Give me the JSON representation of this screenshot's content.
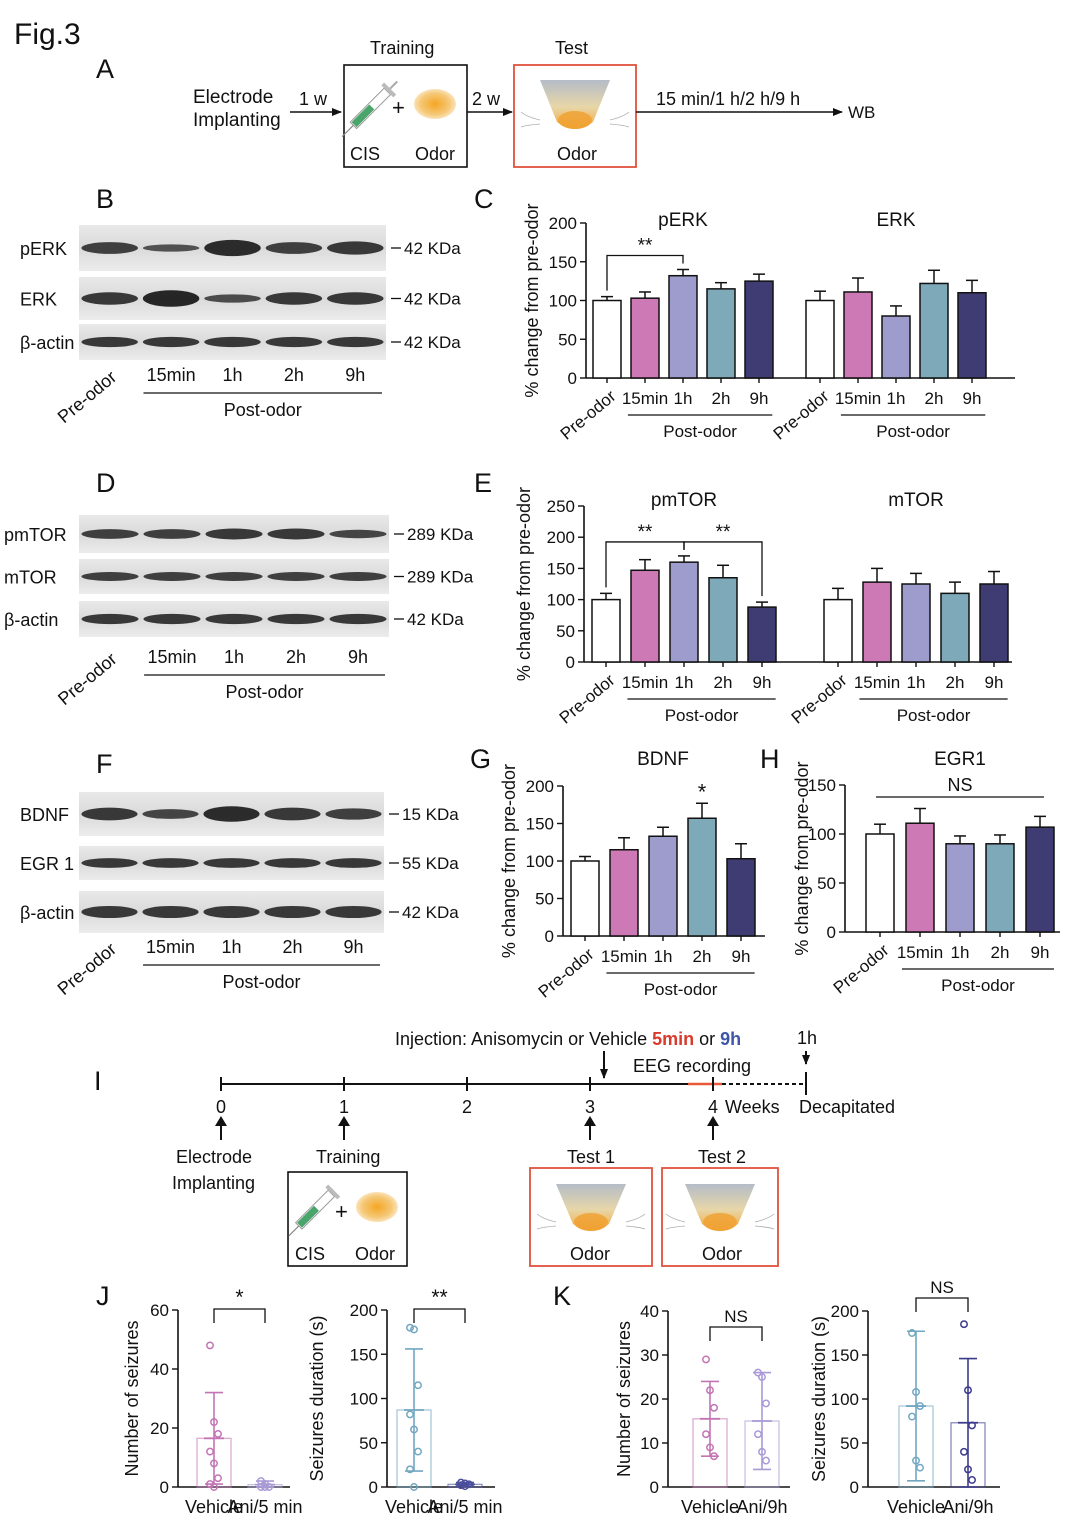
{
  "figure_label": "Fig.3",
  "colors": {
    "white": "#ffffff",
    "pink": "#cc79b5",
    "lilac": "#9e9ccc",
    "teal": "#7ea9b8",
    "blue": "#6cb4d6",
    "navy": "#3e3c72",
    "dark_blue": "#3c3a8c",
    "red_box": "#e1523d",
    "orange_odor": "#f0b54a",
    "syringe": "#4aa56a",
    "timeline_red": "#e85a3a"
  },
  "panelA": {
    "letter": "A",
    "electrode_line1": "Electrode",
    "electrode_line2": "Implanting",
    "arrow1_label": "1 w",
    "training_title": "Training",
    "cis_label": "CIS",
    "plus": "+",
    "odor_label": "Odor",
    "arrow2_label": "2 w",
    "test_title": "Test",
    "test_odor_label": "Odor",
    "arrow3_label": "15 min/1 h/2 h/9 h",
    "wb_label": "WB"
  },
  "panelB": {
    "letter": "B",
    "rows": [
      "pErk",
      "ERK",
      "β-actin"
    ],
    "row_labels": [
      "pERK",
      "ERK",
      "β-actin"
    ],
    "sizes": [
      "42 KDa",
      "42 KDa",
      "42 KDa"
    ],
    "lanes": [
      "Pre-odor",
      "15min",
      "1h",
      "2h",
      "9h"
    ],
    "post_label": "Post-odor"
  },
  "panelD": {
    "letter": "D",
    "row_labels": [
      "pmTOR",
      "mTOR",
      "β-actin"
    ],
    "sizes": [
      "289 KDa",
      "289 KDa",
      "42 KDa"
    ],
    "lanes": [
      "Pre-odor",
      "15min",
      "1h",
      "2h",
      "9h"
    ],
    "post_label": "Post-odor"
  },
  "panelF": {
    "letter": "F",
    "row_labels": [
      "BDNF",
      "EGR 1",
      "β-actin"
    ],
    "sizes": [
      "15 KDa",
      "55 KDa",
      "42 KDa"
    ],
    "lanes": [
      "Pre-odor",
      "15min",
      "1h",
      "2h",
      "9h"
    ],
    "post_label": "Post-odor"
  },
  "chart_data": [
    {
      "panel": "C",
      "type": "bar",
      "ylabel": "% change from pre-odor",
      "ylim": [
        0,
        200
      ],
      "yticks": [
        0,
        50,
        100,
        150,
        200
      ],
      "groups": [
        {
          "title": "pERK",
          "categories": [
            "Pre-odor",
            "15min",
            "1h",
            "2h",
            "9h"
          ],
          "values": [
            100,
            103,
            132,
            115,
            125
          ],
          "errors": [
            5,
            8,
            8,
            8,
            9
          ],
          "significance": [
            {
              "from": 0,
              "to": 2,
              "label": "**"
            }
          ]
        },
        {
          "title": "ERK",
          "categories": [
            "Pre-odor",
            "15min",
            "1h",
            "2h",
            "9h"
          ],
          "values": [
            100,
            111,
            80,
            122,
            110
          ],
          "errors": [
            12,
            18,
            13,
            17,
            16
          ],
          "significance": []
        }
      ],
      "post_label": "Post-odor"
    },
    {
      "panel": "E",
      "type": "bar",
      "ylabel": "% change from pre-odor",
      "ylim": [
        0,
        250
      ],
      "yticks": [
        0,
        50,
        100,
        150,
        200,
        250
      ],
      "groups": [
        {
          "title": "pmTOR",
          "categories": [
            "Pre-odor",
            "15min",
            "1h",
            "2h",
            "9h"
          ],
          "values": [
            100,
            147,
            160,
            135,
            88
          ],
          "errors": [
            10,
            17,
            10,
            20,
            8
          ],
          "significance": [
            {
              "from": 0,
              "to": 2,
              "label": "**"
            },
            {
              "from": 2,
              "to": 4,
              "label": "**"
            }
          ]
        },
        {
          "title": "mTOR",
          "categories": [
            "Pre-odor",
            "15min",
            "1h",
            "2h",
            "9h"
          ],
          "values": [
            100,
            128,
            125,
            110,
            125
          ],
          "errors": [
            18,
            22,
            17,
            18,
            20
          ],
          "significance": []
        }
      ],
      "post_label": "Post-odor"
    },
    {
      "panel": "G",
      "type": "bar",
      "title": "BDNF",
      "ylabel": "% change from pre-odor",
      "ylim": [
        0,
        200
      ],
      "yticks": [
        0,
        50,
        100,
        150,
        200
      ],
      "categories": [
        "Pre-odor",
        "15min",
        "1h",
        "2h",
        "9h"
      ],
      "values": [
        100,
        115,
        133,
        157,
        103
      ],
      "errors": [
        6,
        16,
        12,
        20,
        20
      ],
      "stars": [
        {
          "index": 3,
          "label": "*"
        }
      ],
      "post_label": "Post-odor"
    },
    {
      "panel": "H",
      "type": "bar",
      "title": "EGR1",
      "ylabel": "% change from pre-odor",
      "ylim": [
        0,
        150
      ],
      "yticks": [
        0,
        50,
        100,
        150
      ],
      "categories": [
        "Pre-odor",
        "15min",
        "1h",
        "2h",
        "9h"
      ],
      "values": [
        100,
        111,
        90,
        90,
        107
      ],
      "errors": [
        10,
        15,
        8,
        9,
        11
      ],
      "ns_label": "NS",
      "post_label": "Post-odor"
    },
    {
      "panel": "J1",
      "type": "scatter",
      "ylabel": "Number of seizures",
      "ylim": [
        0,
        60
      ],
      "yticks": [
        0,
        20,
        40,
        60
      ],
      "categories": [
        "Vehicle",
        "Ani/5 min"
      ],
      "means": [
        16.5,
        0.8
      ],
      "sd": [
        15.5,
        1.2
      ],
      "points": [
        [
          48,
          22,
          18,
          12,
          8,
          3,
          1,
          0
        ],
        [
          2,
          1,
          0,
          0,
          0
        ]
      ],
      "sig": "*"
    },
    {
      "panel": "J2",
      "type": "scatter",
      "ylabel": "Seizures duration (s)",
      "ylim": [
        0,
        200
      ],
      "yticks": [
        0,
        50,
        100,
        150,
        200
      ],
      "categories": [
        "Vehicle",
        "Ani/5 min"
      ],
      "means": [
        87,
        3
      ],
      "sd": [
        69,
        2
      ],
      "points": [
        [
          180,
          178,
          115,
          82,
          65,
          40,
          20,
          0
        ],
        [
          5,
          4,
          3,
          2,
          1
        ]
      ],
      "sig": "**"
    },
    {
      "panel": "K1",
      "type": "scatter",
      "ylabel": "Number of seizures",
      "ylim": [
        0,
        40
      ],
      "yticks": [
        0,
        10,
        20,
        30,
        40
      ],
      "categories": [
        "Vehicle",
        "Ani/9h"
      ],
      "means": [
        15.5,
        15
      ],
      "sd": [
        8.5,
        11
      ],
      "points": [
        [
          29,
          22,
          18,
          12,
          9,
          7
        ],
        [
          26,
          25,
          19,
          12,
          8,
          6
        ]
      ],
      "sig": "NS"
    },
    {
      "panel": "K2",
      "type": "scatter",
      "ylabel": "Seizures duration (s)",
      "ylim": [
        0,
        200
      ],
      "yticks": [
        0,
        50,
        100,
        150,
        200
      ],
      "categories": [
        "Vehicle",
        "Ani/9h"
      ],
      "means": [
        92,
        73
      ],
      "sd": [
        85,
        73
      ],
      "points": [
        [
          175,
          108,
          92,
          80,
          30,
          22
        ],
        [
          185,
          110,
          70,
          40,
          20,
          8
        ]
      ],
      "sig": "NS"
    }
  ],
  "panel_letters": {
    "C": "C",
    "E": "E",
    "G": "G",
    "H": "H",
    "J": "J",
    "K": "K"
  },
  "panelI": {
    "letter": "I",
    "injection_prefix": "Injection: Anisomycin or Vehicle ",
    "injection_5min": "5min",
    "injection_or": " or ",
    "injection_9h": "9h",
    "eeg_label": "EEG recording",
    "hour_label": "1h",
    "ticks": [
      "0",
      "1",
      "2",
      "3",
      "4"
    ],
    "weeks_label": "Weeks",
    "decap_label": "Decapitated",
    "electrode_line1": "Electrode",
    "electrode_line2": "Implanting",
    "training_label": "Training",
    "test1": "Test 1",
    "test2": "Test 2",
    "cis_label": "CIS",
    "odor_label": "Odor",
    "plus": "+"
  }
}
